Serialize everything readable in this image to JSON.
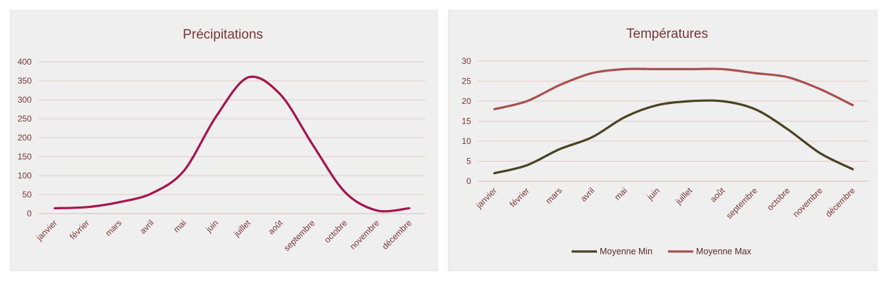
{
  "chart_data": [
    {
      "type": "line",
      "title": "Précipitations",
      "categories": [
        "janvier",
        "février",
        "mars",
        "avril",
        "mai",
        "juin",
        "juillet",
        "août",
        "septembre",
        "octobre",
        "novembre",
        "décembre"
      ],
      "series": [
        {
          "values": [
            14,
            17,
            30,
            53,
            112,
            255,
            359,
            314,
            182,
            57,
            8,
            14
          ],
          "color": "#a4154f"
        }
      ],
      "ylim": [
        0,
        400
      ],
      "yticks": [
        "0",
        "50",
        "100",
        "150",
        "200",
        "250",
        "300",
        "350",
        "400"
      ],
      "grid": true,
      "legend": "none"
    },
    {
      "type": "line",
      "title": "Températures",
      "categories": [
        "janvier",
        "février",
        "mars",
        "avril",
        "mai",
        "juin",
        "juillet",
        "août",
        "septembre",
        "octobre",
        "novembre",
        "décembre"
      ],
      "series": [
        {
          "name": "Moyenne Min",
          "values": [
            2,
            4,
            8,
            11,
            16,
            19,
            20,
            20,
            18,
            13,
            7,
            3
          ],
          "color": "#4a4320"
        },
        {
          "name": "Moyenne Max",
          "values": [
            18,
            20,
            24,
            27,
            28,
            28,
            28,
            28,
            27,
            26,
            23,
            19
          ],
          "color": "#a8504e"
        }
      ],
      "ylim": [
        0,
        30
      ],
      "yticks": [
        "0",
        "5",
        "10",
        "15",
        "20",
        "25",
        "30"
      ],
      "grid": true,
      "legend": "bottom"
    }
  ]
}
